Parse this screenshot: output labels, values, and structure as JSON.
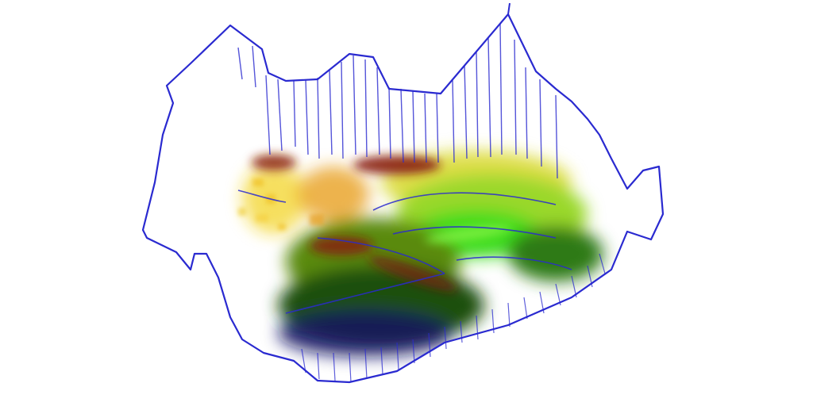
{
  "image": {
    "background_color": "#ffffff",
    "outline_color": "#2a2ad0",
    "palette": {
      "yellow": "#f2d21e",
      "orange": "#e8a020",
      "dark_red": "#8a1c10",
      "lime_green": "#9ad82a",
      "bright_green": "#3cdc1e",
      "olive_green": "#5a8a10",
      "dark_green": "#1e5010",
      "navy": "#101060"
    }
  }
}
